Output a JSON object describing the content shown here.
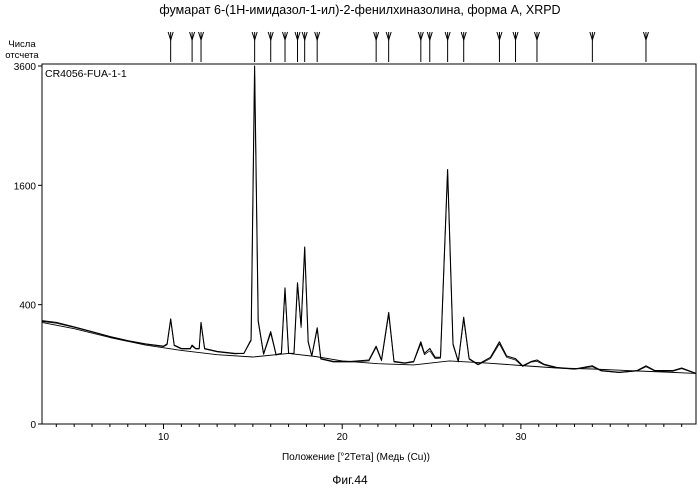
{
  "chart_data": {
    "type": "line",
    "title": "фумарат 6-(1Н-имидазол-1-ил)-2-фенилхиназолина, форма А, XRPD",
    "sample_label": "CR4056-FUA-1-1",
    "ylabel": "Числа отсчета",
    "ylabel_lines": [
      "Числа",
      "отсчета"
    ],
    "xlabel": "Положение [°2Тета] (Медь (Cu))",
    "figure_caption": "Фиг.44",
    "xlim": [
      3.2,
      39.8
    ],
    "y_scale": "sqrt",
    "ylim": [
      0,
      3600
    ],
    "x_ticks": [
      10,
      20,
      30
    ],
    "x_tick_labels": [
      "10",
      "20",
      "30"
    ],
    "y_ticks": [
      0,
      400,
      1600,
      3600
    ],
    "y_tick_labels": [
      "0",
      "400",
      "1600",
      "3600"
    ],
    "peak_markers": [
      10.4,
      11.6,
      12.1,
      15.1,
      16.0,
      16.8,
      17.5,
      17.9,
      18.6,
      21.9,
      22.6,
      24.4,
      24.9,
      25.9,
      26.8,
      28.8,
      29.7,
      30.9,
      34.0,
      37.0
    ],
    "series": [
      {
        "values_desc": "measured",
        "x": [
          3.2,
          4.0,
          5.0,
          6.0,
          7.0,
          8.0,
          9.0,
          10.0,
          10.2,
          10.4,
          10.6,
          11.0,
          11.5,
          11.6,
          11.8,
          12.0,
          12.1,
          12.3,
          13.0,
          14.0,
          14.5,
          14.9,
          15.1,
          15.3,
          15.6,
          16.0,
          16.3,
          16.6,
          16.8,
          17.0,
          17.3,
          17.5,
          17.7,
          17.9,
          18.1,
          18.3,
          18.6,
          18.8,
          19.5,
          20.5,
          21.5,
          21.9,
          22.2,
          22.6,
          22.9,
          23.5,
          24.0,
          24.4,
          24.6,
          24.9,
          25.2,
          25.5,
          25.9,
          26.2,
          26.5,
          26.8,
          27.1,
          27.6,
          28.3,
          28.8,
          29.2,
          29.7,
          30.1,
          30.6,
          30.9,
          31.3,
          32.0,
          33.0,
          34.0,
          34.5,
          35.5,
          36.5,
          37.0,
          37.5,
          38.5,
          39.0,
          39.8
        ],
        "y": [
          300,
          290,
          265,
          240,
          215,
          195,
          180,
          170,
          180,
          310,
          175,
          160,
          160,
          175,
          160,
          160,
          290,
          160,
          148,
          140,
          140,
          200,
          3600,
          300,
          138,
          240,
          135,
          140,
          520,
          140,
          140,
          560,
          270,
          880,
          190,
          130,
          260,
          120,
          110,
          110,
          115,
          170,
          115,
          350,
          110,
          105,
          110,
          190,
          140,
          160,
          125,
          125,
          1820,
          180,
          110,
          320,
          120,
          100,
          125,
          190,
          130,
          120,
          95,
          110,
          115,
          100,
          90,
          85,
          95,
          80,
          75,
          80,
          95,
          80,
          80,
          88,
          72
        ]
      },
      {
        "values_desc": "calculated",
        "x": [
          3.2,
          4.0,
          5.0,
          6.0,
          7.0,
          8.0,
          9.0,
          10.0,
          10.2,
          10.4,
          10.6,
          11.0,
          11.5,
          11.6,
          11.8,
          12.0,
          12.1,
          12.3,
          13.0,
          14.0,
          14.5,
          14.9,
          15.1,
          15.3,
          15.6,
          16.0,
          16.3,
          16.6,
          16.8,
          17.0,
          17.3,
          17.5,
          17.7,
          17.9,
          18.1,
          18.3,
          18.6,
          18.8,
          19.5,
          20.5,
          21.5,
          21.9,
          22.2,
          22.6,
          22.9,
          23.5,
          24.0,
          24.4,
          24.6,
          24.9,
          25.2,
          25.5,
          25.9,
          26.2,
          26.5,
          26.8,
          27.1,
          27.6,
          28.3,
          28.8,
          29.2,
          29.7,
          30.1,
          30.6,
          30.9,
          31.3,
          32.0,
          33.0,
          34.0,
          34.5,
          35.5,
          36.5,
          37.0,
          37.5,
          38.5,
          39.0,
          39.8
        ],
        "y": [
          295,
          285,
          262,
          238,
          213,
          194,
          179,
          168,
          176,
          300,
          172,
          158,
          158,
          170,
          158,
          158,
          280,
          158,
          146,
          138,
          140,
          195,
          3550,
          290,
          136,
          230,
          133,
          140,
          500,
          140,
          140,
          540,
          260,
          860,
          185,
          130,
          250,
          118,
          108,
          108,
          112,
          165,
          112,
          335,
          108,
          103,
          108,
          180,
          135,
          150,
          120,
          122,
          1800,
          175,
          108,
          305,
          118,
          98,
          120,
          180,
          125,
          115,
          93,
          108,
          110,
          98,
          88,
          84,
          92,
          79,
          74,
          79,
          92,
          79,
          78,
          86,
          71
        ]
      },
      {
        "values_desc": "background",
        "x": [
          3.2,
          5.0,
          7.0,
          9.0,
          11.0,
          13.0,
          15.0,
          17.0,
          18.5,
          20.0,
          22.0,
          24.0,
          26.0,
          28.0,
          30.0,
          32.0,
          34.0,
          36.0,
          38.0,
          39.8
        ],
        "y": [
          290,
          255,
          210,
          175,
          152,
          135,
          126,
          140,
          128,
          112,
          102,
          98,
          112,
          105,
          96,
          88,
          85,
          80,
          76,
          72
        ]
      }
    ]
  }
}
